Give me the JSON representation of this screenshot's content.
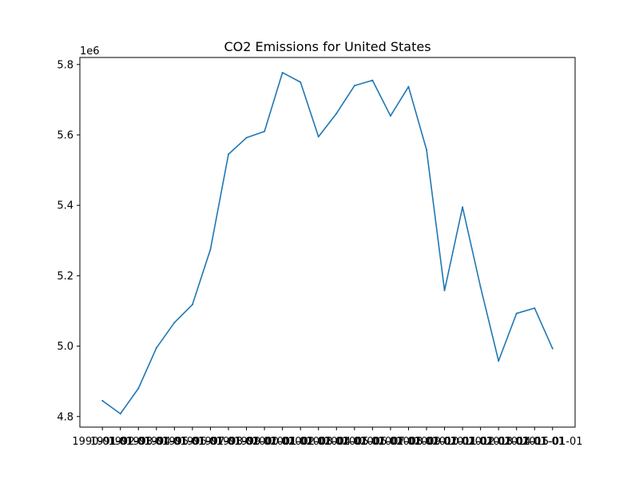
{
  "chart_data": {
    "type": "line",
    "title": "CO2 Emissions for United States",
    "xlabel": "",
    "ylabel": "",
    "y_offset_label": "1e6",
    "y_scale_factor": 1000000,
    "ylim": [
      4.77,
      5.82
    ],
    "yticks": [
      4.8,
      5.0,
      5.2,
      5.4,
      5.6,
      5.8
    ],
    "ytick_labels": [
      "4.8",
      "5.0",
      "5.2",
      "5.4",
      "5.6",
      "5.8"
    ],
    "grid": false,
    "legend": "none",
    "line_color": "#1f77b4",
    "x": [
      "1990-01-01",
      "1991-01-01",
      "1992-01-01",
      "1993-01-01",
      "1994-01-01",
      "1995-01-01",
      "1996-01-01",
      "1997-01-01",
      "1998-01-01",
      "1999-01-01",
      "2000-01-01",
      "2001-01-01",
      "2002-01-01",
      "2003-01-01",
      "2004-01-01",
      "2005-01-01",
      "2006-01-01",
      "2007-01-01",
      "2008-01-01",
      "2009-01-01",
      "2010-01-01",
      "2011-01-01",
      "2012-01-01",
      "2013-01-01",
      "2014-01-01",
      "2015-01-01"
    ],
    "series": [
      {
        "values": [
          4845000,
          4808000,
          4880000,
          4995000,
          5067000,
          5118000,
          5275000,
          5545000,
          5592000,
          5610000,
          5777000,
          5750000,
          5595000,
          5661000,
          5740000,
          5755000,
          5654000,
          5737000,
          5558000,
          5158000,
          5395000,
          5168000,
          4958000,
          5093000,
          5108000,
          4993000
        ]
      }
    ]
  }
}
